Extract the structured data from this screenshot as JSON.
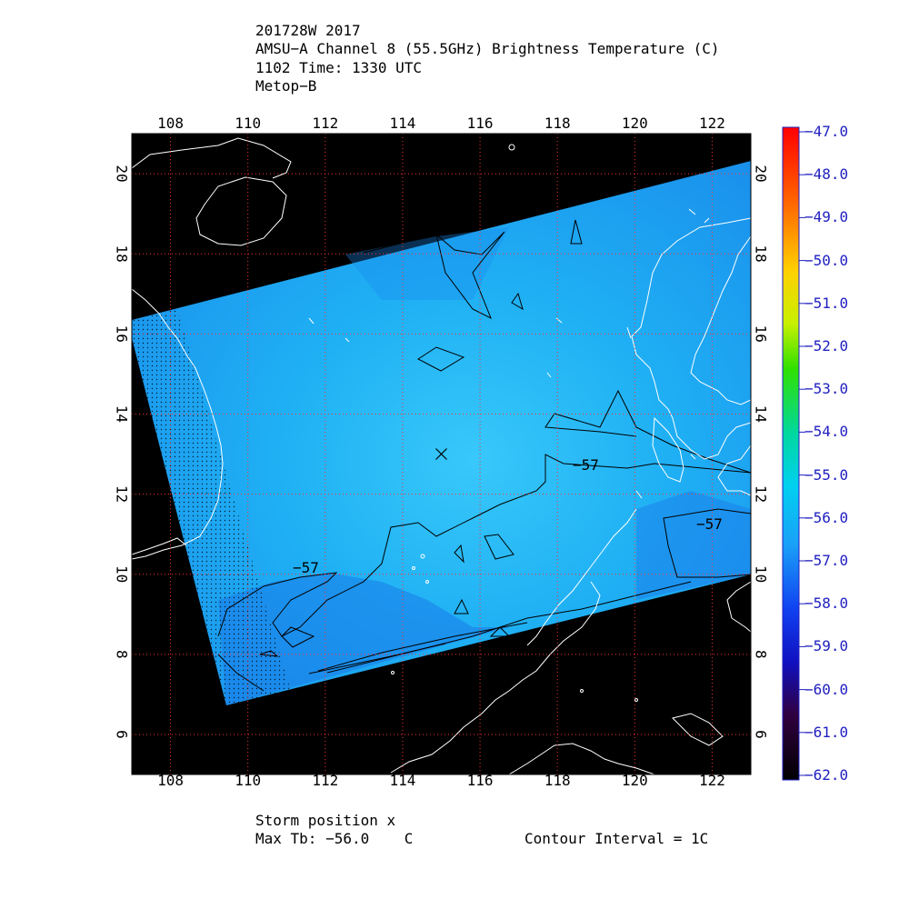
{
  "header": {
    "line1": "201728W 2017",
    "line2": "AMSU−A Channel 8 (55.5GHz) Brightness Temperature (C)",
    "line3": "1102 Time: 1330 UTC",
    "line4": "Metop−B"
  },
  "map": {
    "lon_range": [
      107,
      123
    ],
    "lat_range": [
      5,
      21
    ],
    "lon_ticks": [
      "108",
      "110",
      "112",
      "114",
      "116",
      "118",
      "120",
      "122"
    ],
    "lat_ticks": [
      "6",
      "8",
      "10",
      "12",
      "14",
      "16",
      "18",
      "20"
    ],
    "storm_position": {
      "lon": 115.0,
      "lat": 13.0
    },
    "contour_labels": [
      "−57",
      "−57",
      "−57"
    ],
    "colors": {
      "background": "#000000",
      "field_main": "#1aa6f0",
      "field_light": "#2dc0f8",
      "field_dark": "#1a78e8",
      "grid": "#ff3030",
      "coast": "#ffffff",
      "contour": "#000000"
    }
  },
  "colorbar": {
    "labels": [
      "−47.0",
      "−48.0",
      "−49.0",
      "−50.0",
      "−51.0",
      "−52.0",
      "−53.0",
      "−54.0",
      "−55.0",
      "−56.0",
      "−57.0",
      "−58.0",
      "−59.0",
      "−60.0",
      "−61.0",
      "−62.0"
    ],
    "label_color": "#2020c0"
  },
  "footer": {
    "storm_label": "Storm position x",
    "max_tb": "Max Tb: −56.0    C",
    "contour_interval": "Contour Interval = 1C"
  }
}
